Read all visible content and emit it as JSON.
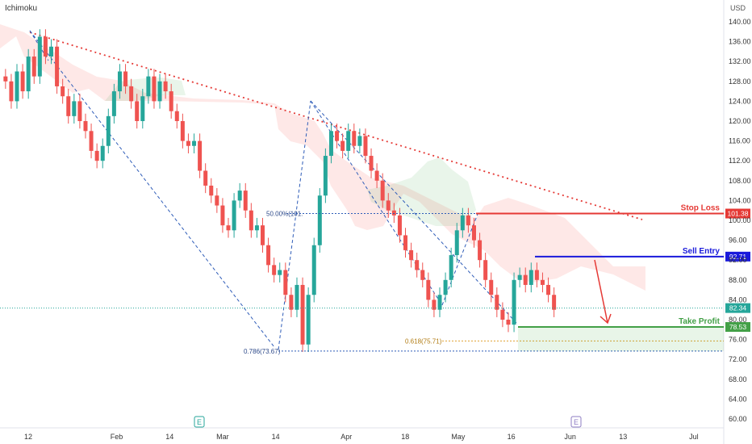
{
  "indicator_label": "Ichimoku",
  "currency_label": "USD",
  "earnings_markers": [
    {
      "label": "E",
      "date_index": 39
    },
    {
      "label": "E",
      "date_index": 110
    }
  ],
  "colors": {
    "up": "#26a69a",
    "down": "#ef5350",
    "stop_loss": "#e53935",
    "sell_entry": "#1a1adb",
    "take_profit": "#43a047",
    "trend": "#e53935",
    "fib_line": "#2e5cb8",
    "fib_orange": "#e0a030",
    "cloud_red": "rgba(244,67,54,0.12)",
    "cloud_green": "rgba(76,175,80,0.12)"
  },
  "chart_data": {
    "type": "candlestick",
    "ylim": [
      60,
      140
    ],
    "y_ticks": [
      "140.00",
      "136.00",
      "132.00",
      "128.00",
      "124.00",
      "120.00",
      "116.00",
      "112.00",
      "108.00",
      "104.00",
      "100.00",
      "96.00",
      "92.00",
      "88.00",
      "84.00",
      "80.00",
      "76.00",
      "72.00",
      "68.00",
      "64.00",
      "60.00"
    ],
    "x_ticks": [
      {
        "label": "12",
        "idx": 0
      },
      {
        "label": "Feb",
        "idx": 15
      },
      {
        "label": "14",
        "idx": 24
      },
      {
        "label": "Mar",
        "idx": 33
      },
      {
        "label": "14",
        "idx": 42
      },
      {
        "label": "Apr",
        "idx": 54
      },
      {
        "label": "18",
        "idx": 64
      },
      {
        "label": "May",
        "idx": 73
      },
      {
        "label": "16",
        "idx": 82
      },
      {
        "label": "Jun",
        "idx": 92
      },
      {
        "label": "13",
        "idx": 101
      },
      {
        "label": "Jul",
        "idx": 113
      }
    ],
    "x_count": 115,
    "closes": [
      128,
      124,
      130,
      126,
      133,
      129,
      137,
      133,
      135,
      127,
      125,
      121,
      124,
      120,
      118,
      114,
      112,
      115,
      121,
      126,
      130,
      127,
      124,
      120,
      125,
      129,
      124,
      128,
      126,
      122,
      120,
      116,
      115,
      116,
      110,
      107,
      105,
      103,
      99,
      98,
      104,
      106,
      102,
      98,
      99,
      95,
      91,
      89,
      90,
      85,
      82,
      87,
      75,
      85,
      95,
      105,
      113,
      118,
      116,
      114,
      118,
      115,
      117,
      113,
      110,
      108,
      104,
      102,
      101,
      97,
      94,
      92,
      90,
      88,
      84,
      82,
      85,
      88,
      93,
      98,
      101,
      99,
      96,
      92,
      88,
      85,
      82,
      80,
      79,
      88,
      89,
      87,
      90,
      88,
      87,
      85,
      82
    ],
    "levels": [
      {
        "name": "Stop Loss",
        "value": 101.38,
        "value_label": "101.38"
      },
      {
        "name": "Sell Entry",
        "value": 92.71,
        "value_label": "92.71"
      },
      {
        "name": "Take Profit",
        "value": 78.53,
        "value_label": "78.53"
      }
    ],
    "current_price": {
      "value": 82.34,
      "value_label": "82.34"
    },
    "annotations": [
      {
        "text": "50.00%(101.",
        "value": 101.38
      },
      {
        "text": "0.786(73.67)",
        "value": 73.67
      },
      {
        "text": "0.618(75.71)",
        "value": 75.71
      }
    ]
  }
}
